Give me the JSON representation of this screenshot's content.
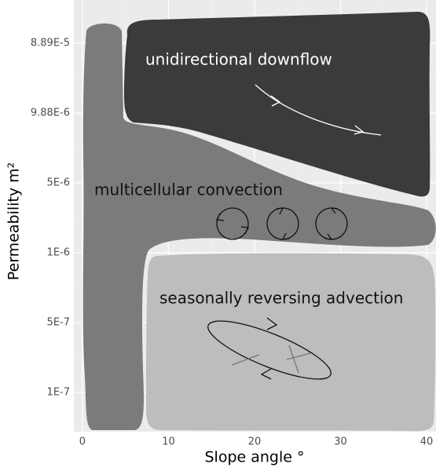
{
  "chart_data": {
    "type": "region",
    "x_label": "Slope angle °",
    "y_label": "Permeability m²",
    "xlim": [
      -1,
      41
    ],
    "xticks": [
      0,
      10,
      20,
      30,
      40
    ],
    "y_categories": [
      "8.89E-5",
      "9.88E-6",
      "5E-6",
      "1E-6",
      "5E-7",
      "1E-7"
    ],
    "grid": true,
    "regions": [
      {
        "name": "unidirectional downflow",
        "color": "#3b3b3b"
      },
      {
        "name": "multicellular convection",
        "color": "#7b7b7b"
      },
      {
        "name": "seasonally reversing advection",
        "color": "#bdbdbd"
      }
    ]
  }
}
